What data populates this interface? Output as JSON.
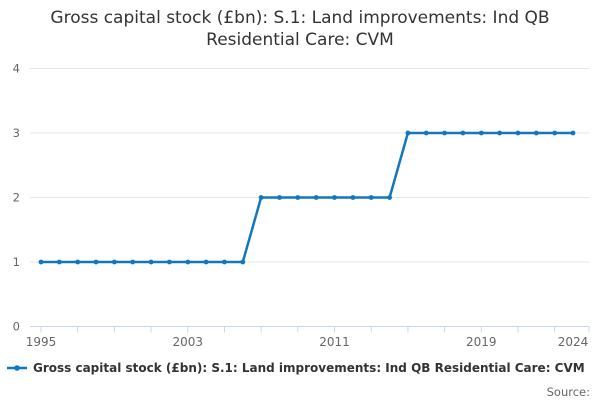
{
  "title": {
    "line1": "Gross capital stock (£bn): S.1: Land improvements: Ind QB",
    "line2": "Residential Care: CVM"
  },
  "legend": {
    "label": "Gross capital stock (£bn): S.1: Land improvements: Ind QB Residential Care: CVM"
  },
  "credits": {
    "label": "Source:"
  },
  "colors": {
    "series": "#1278be",
    "grid": "#e6e6e6",
    "axis": "#ccd6eb",
    "tick": "#ccd6eb",
    "axis_label": "#666666",
    "title": "#333333",
    "legend_text": "#333333",
    "background": "#ffffff"
  },
  "chart_data": {
    "type": "line",
    "title": "Gross capital stock (£bn): S.1: Land improvements: Ind QB Residential Care: CVM",
    "x": [
      1995,
      1996,
      1997,
      1998,
      1999,
      2000,
      2001,
      2002,
      2003,
      2004,
      2005,
      2006,
      2007,
      2008,
      2009,
      2010,
      2011,
      2012,
      2013,
      2014,
      2015,
      2016,
      2017,
      2018,
      2019,
      2020,
      2021,
      2022,
      2023,
      2024
    ],
    "series": [
      {
        "name": "Gross capital stock (£bn): S.1: Land improvements: Ind QB Residential Care: CVM",
        "values": [
          1,
          1,
          1,
          1,
          1,
          1,
          1,
          1,
          1,
          1,
          1,
          1,
          2,
          2,
          2,
          2,
          2,
          2,
          2,
          2,
          3,
          3,
          3,
          3,
          3,
          3,
          3,
          3,
          3,
          3
        ]
      }
    ],
    "xlabel": "",
    "ylabel": "",
    "ylim": [
      0,
      4
    ],
    "yticks": [
      0,
      1,
      2,
      3,
      4
    ],
    "xticks": [
      1995,
      1997,
      1999,
      2001,
      2003,
      2005,
      2007,
      2009,
      2011,
      2013,
      2015,
      2017,
      2019,
      2021,
      2023
    ],
    "xtick_labels": [
      1995,
      2003,
      2011,
      2019,
      2024
    ],
    "grid": true,
    "legend_position": "bottom-left",
    "marker": "circle"
  }
}
